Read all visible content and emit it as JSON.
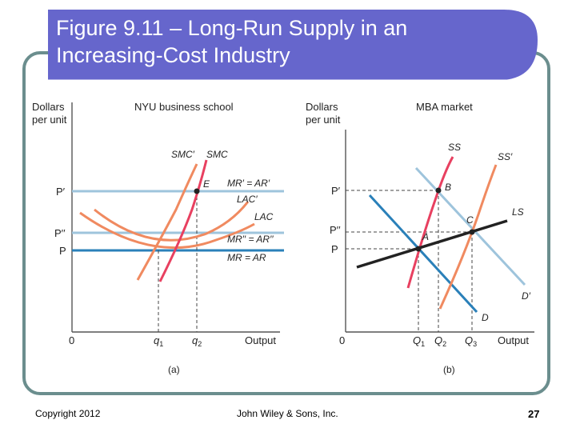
{
  "slide": {
    "title_line1": "Figure 9.11 – Long-Run Supply in an",
    "title_line2": "Increasing-Cost Industry",
    "copyright": "Copyright 2012",
    "publisher": "John Wiley & Sons, Inc.",
    "page_number": "27"
  },
  "colors": {
    "title_bar": "#6666cc",
    "frame_border": "#6b8e8e",
    "red_curve": "#e84060",
    "orange_curve": "#f08a60",
    "blue_line": "#2a80b9",
    "light_blue_line": "#9ec4dc",
    "black_line": "#222222"
  },
  "panel_a": {
    "title": "NYU business school",
    "yaxis_label_1": "Dollars",
    "yaxis_label_2": "per unit",
    "xaxis_label": "Output",
    "origin": "0",
    "caption": "(a)",
    "price_p_prime": "P′",
    "price_p_double": "P′′",
    "price_p": "P",
    "smc_prime": "SMC′",
    "smc": "SMC",
    "point_e": "E",
    "mr_prime": "MR′ = AR′",
    "lac_prime": "LAC′",
    "lac": "LAC",
    "mr_double": "MR′′ = AR′′",
    "mr": "MR = AR",
    "q1": "q",
    "q1_sub": "1",
    "q2": "q",
    "q2_sub": "2"
  },
  "panel_b": {
    "title": "MBA market",
    "yaxis_label_1": "Dollars",
    "yaxis_label_2": "per unit",
    "xaxis_label": "Output",
    "origin": "0",
    "caption": "(b)",
    "price_p_prime": "P′",
    "price_p_double": "P′′",
    "price_p": "P",
    "ss": "SS",
    "ss_prime": "SS′",
    "ls": "LS",
    "d_prime": "D′",
    "d": "D",
    "point_a": "A",
    "point_b": "B",
    "point_c": "C",
    "q1": "Q",
    "q1_sub": "1",
    "q2": "Q",
    "q2_sub": "2",
    "q3": "Q",
    "q3_sub": "3"
  }
}
